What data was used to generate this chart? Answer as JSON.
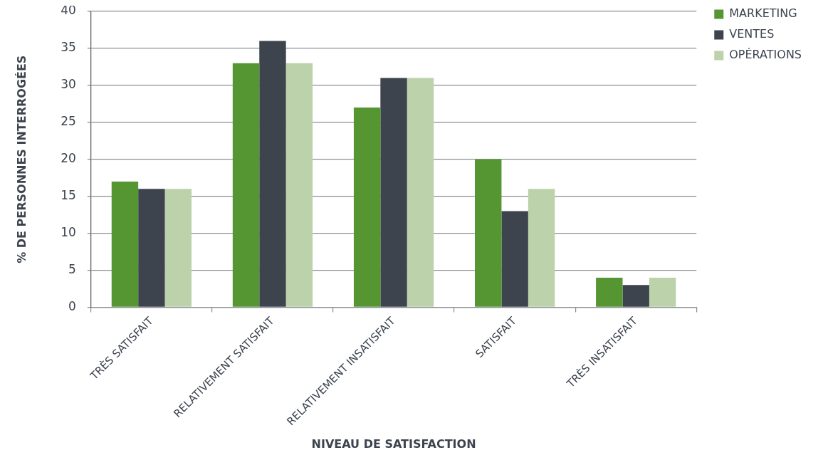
{
  "chart_data": {
    "type": "bar",
    "categories": [
      "TRÈS SATISFAIT",
      "RELATIVEMENT SATISFAIT",
      "RELATIVEMENT INSATISFAIT",
      "SATISFAIT",
      "TRÈS INSATISFAIT"
    ],
    "series": [
      {
        "name": "MARKETING",
        "color": "#559632",
        "values": [
          17,
          33,
          27,
          20,
          4
        ]
      },
      {
        "name": "VENTES",
        "color": "#3d444e",
        "values": [
          16,
          36,
          31,
          13,
          3
        ]
      },
      {
        "name": "OPÉRATIONS",
        "color": "#bcd2aa",
        "values": [
          16,
          33,
          31,
          16,
          4
        ]
      }
    ],
    "xlabel": "NIVEAU DE SATISFACTION",
    "ylabel": "% DE PERSONNES INTERROGÉES",
    "ylim": [
      0,
      40
    ],
    "yticks": [
      0,
      5,
      10,
      15,
      20,
      25,
      30,
      35,
      40
    ],
    "grid": "y",
    "legend": "top right"
  }
}
